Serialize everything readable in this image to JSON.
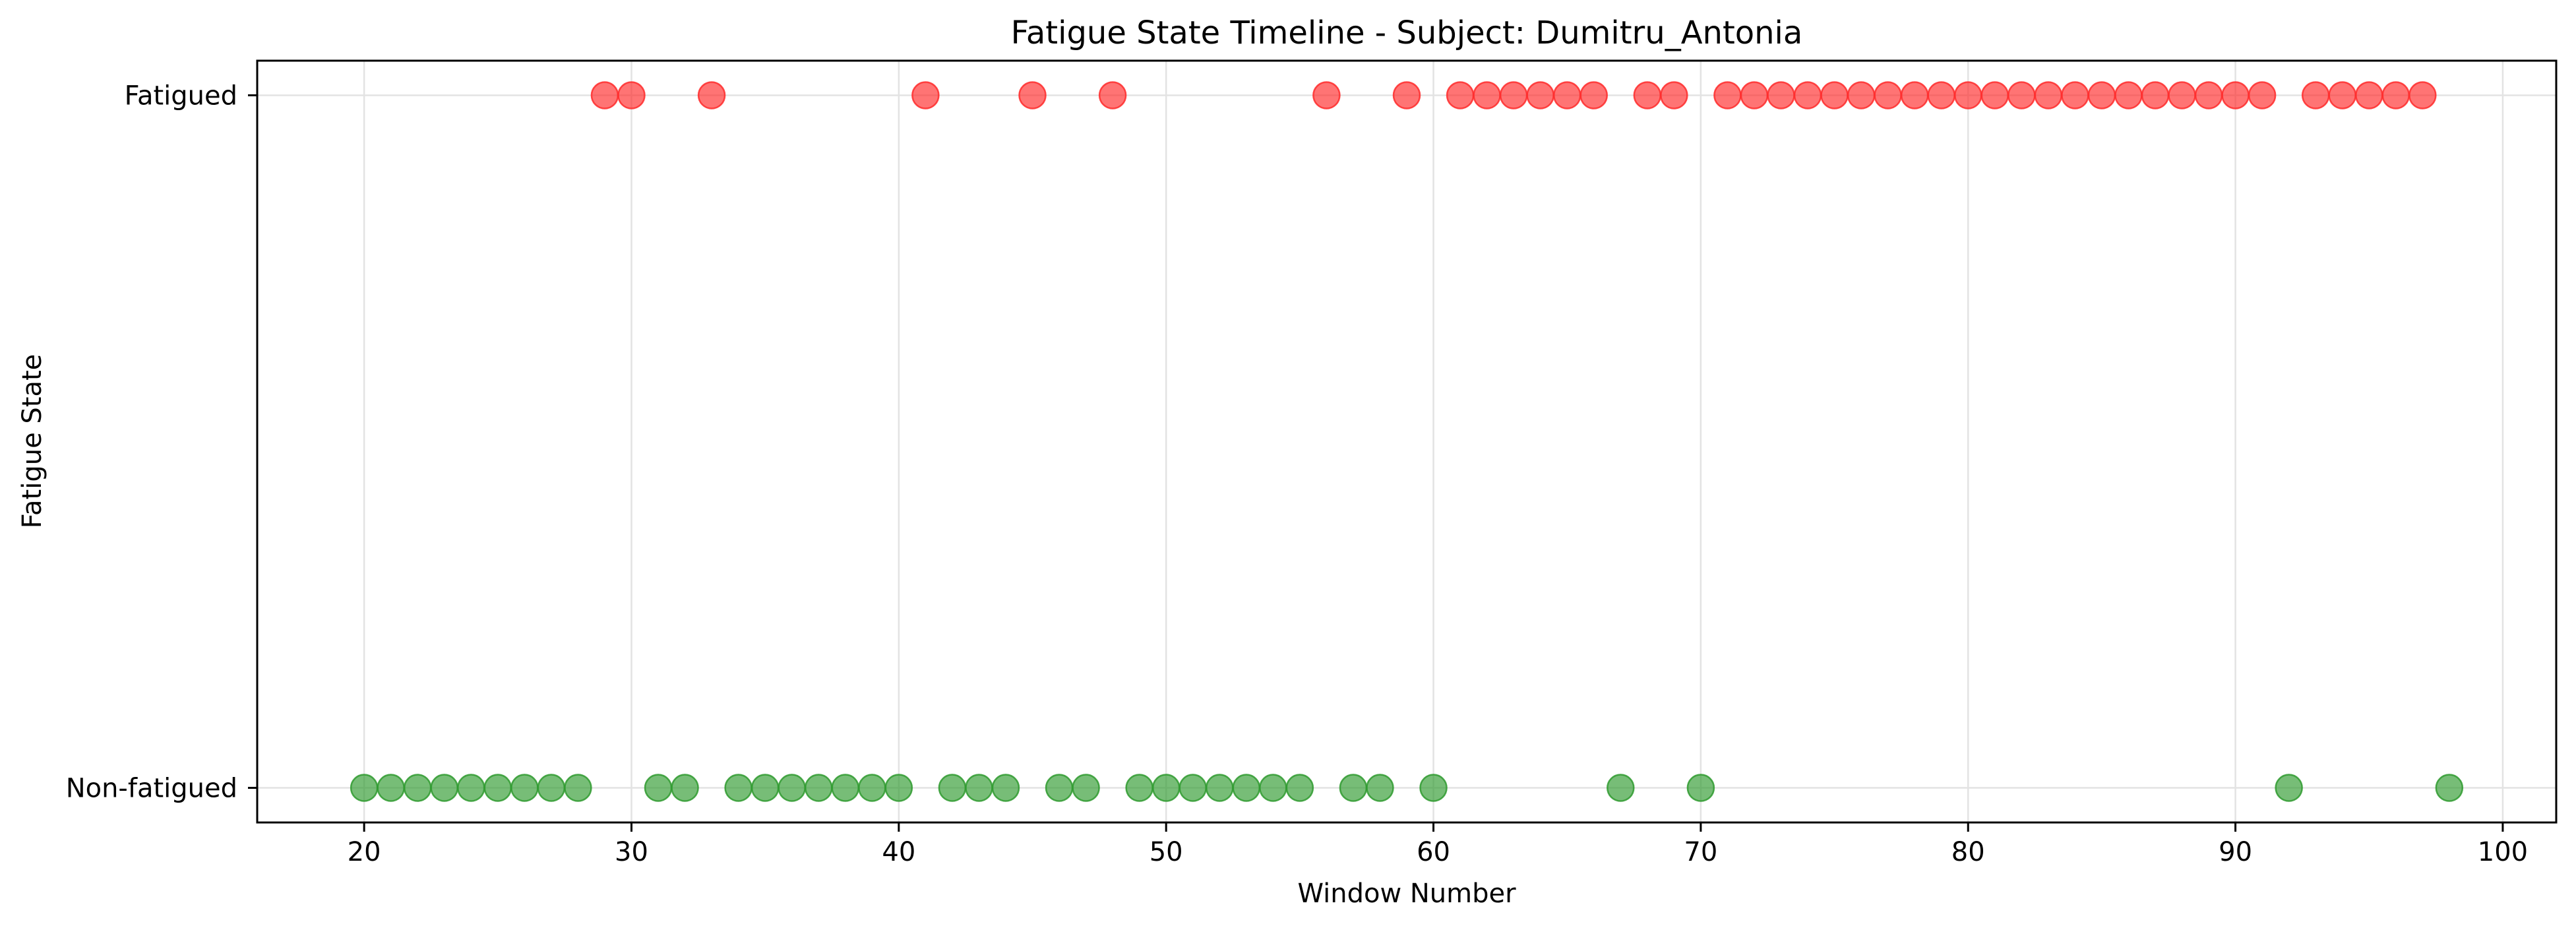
{
  "chart_data": {
    "type": "scatter",
    "title": "Fatigue State Timeline - Subject: Dumitru_Antonia",
    "xlabel": "Window Number",
    "ylabel": "Fatigue State",
    "xlim": [
      16,
      102
    ],
    "ylim": [
      -0.05,
      1.05
    ],
    "x_ticks": [
      20,
      30,
      40,
      50,
      60,
      70,
      80,
      90,
      100
    ],
    "y_ticks": [
      {
        "value": 0,
        "label": "Non-fatigued"
      },
      {
        "value": 1,
        "label": "Fatigued"
      }
    ],
    "grid": true,
    "legend": "none",
    "series": [
      {
        "state": 0,
        "color": "#2e9a2e",
        "x": [
          20,
          21,
          22,
          23,
          24,
          25,
          26,
          27,
          28,
          31,
          32,
          34,
          35,
          36,
          37,
          38,
          39,
          40,
          42,
          43,
          44,
          46,
          47,
          49,
          50,
          51,
          52,
          53,
          54,
          55,
          57,
          58,
          60,
          67,
          70,
          92,
          98
        ]
      },
      {
        "state": 1,
        "color": "#ff2a2a",
        "x": [
          29,
          30,
          33,
          41,
          45,
          48,
          56,
          59,
          61,
          62,
          63,
          64,
          65,
          66,
          68,
          69,
          71,
          72,
          73,
          74,
          75,
          76,
          77,
          78,
          79,
          80,
          81,
          82,
          83,
          84,
          85,
          86,
          87,
          88,
          89,
          90,
          91,
          93,
          94,
          95,
          96,
          97
        ]
      }
    ]
  }
}
